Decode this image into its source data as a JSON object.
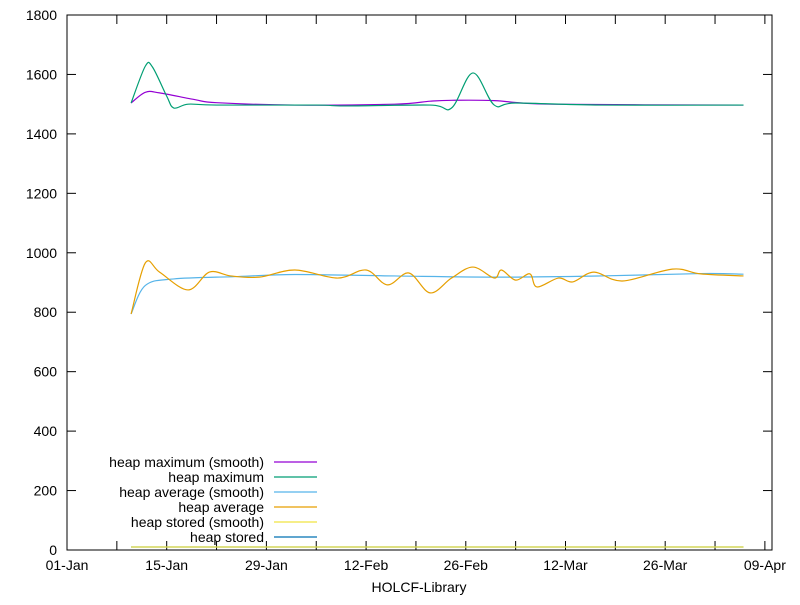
{
  "chart_data": {
    "type": "line",
    "title": "",
    "xlabel": "HOLCF-Library",
    "ylabel": "",
    "ylim": [
      0,
      1800
    ],
    "yticks": [
      "0",
      "200",
      "400",
      "600",
      "800",
      "1000",
      "1200",
      "1400",
      "1600",
      "1800"
    ],
    "xlim": [
      "01-01",
      "04-09"
    ],
    "xticks": [
      "01-Jan",
      "15-Jan",
      "29-Jan",
      "12-Feb",
      "26-Feb",
      "12-Mar",
      "26-Mar",
      "09-Apr"
    ],
    "grid": false,
    "legend_position": "bottom-left",
    "series": [
      {
        "name": "heap maximum (smooth)",
        "color": "#9400d3",
        "x": [
          "01-10",
          "01-12",
          "01-14",
          "01-19",
          "01-22",
          "02-02",
          "02-16",
          "02-21",
          "02-24",
          "03-01",
          "03-09",
          "04-05"
        ],
        "y": [
          1504,
          1540,
          1538,
          1515,
          1505,
          1497,
          1500,
          1510,
          1513,
          1512,
          1500,
          1497
        ]
      },
      {
        "name": "heap maximum",
        "color": "#009e73",
        "x": [
          "01-10",
          "01-12",
          "01-13",
          "01-15",
          "01-16",
          "01-18",
          "01-22",
          "02-05",
          "02-09",
          "02-21",
          "02-24",
          "02-27",
          "03-01",
          "03-04",
          "03-16",
          "04-05"
        ],
        "y": [
          1504,
          1628,
          1625,
          1527,
          1487,
          1500,
          1497,
          1497,
          1494,
          1497,
          1487,
          1605,
          1497,
          1504,
          1497,
          1497
        ]
      },
      {
        "name": "heap average (smooth)",
        "color": "#56b4e9",
        "x": [
          "01-10",
          "01-12",
          "01-16",
          "01-25",
          "02-02",
          "02-16",
          "03-02",
          "03-16",
          "03-30",
          "04-05"
        ],
        "y": [
          794,
          890,
          912,
          920,
          927,
          922,
          918,
          922,
          930,
          928
        ]
      },
      {
        "name": "heap average",
        "color": "#e69f00",
        "x": [
          "01-10",
          "01-12",
          "01-14",
          "01-18",
          "01-21",
          "01-24",
          "01-28",
          "02-02",
          "02-08",
          "02-12",
          "02-15",
          "02-18",
          "02-21",
          "02-24",
          "02-27",
          "03-01",
          "03-02",
          "03-04",
          "03-06",
          "03-07",
          "03-10",
          "03-12",
          "03-15",
          "03-19",
          "03-26",
          "03-30",
          "04-05"
        ],
        "y": [
          794,
          966,
          935,
          875,
          935,
          922,
          918,
          942,
          915,
          942,
          892,
          932,
          865,
          915,
          952,
          915,
          942,
          908,
          929,
          885,
          915,
          902,
          935,
          905,
          945,
          929,
          922
        ]
      },
      {
        "name": "heap stored (smooth)",
        "color": "#f0e442",
        "x": [
          "01-10",
          "04-05"
        ],
        "y": [
          10,
          10
        ]
      },
      {
        "name": "heap stored",
        "color": "#0072b2",
        "x": [
          "01-10",
          "04-05"
        ],
        "y": [
          10,
          10
        ]
      }
    ]
  }
}
